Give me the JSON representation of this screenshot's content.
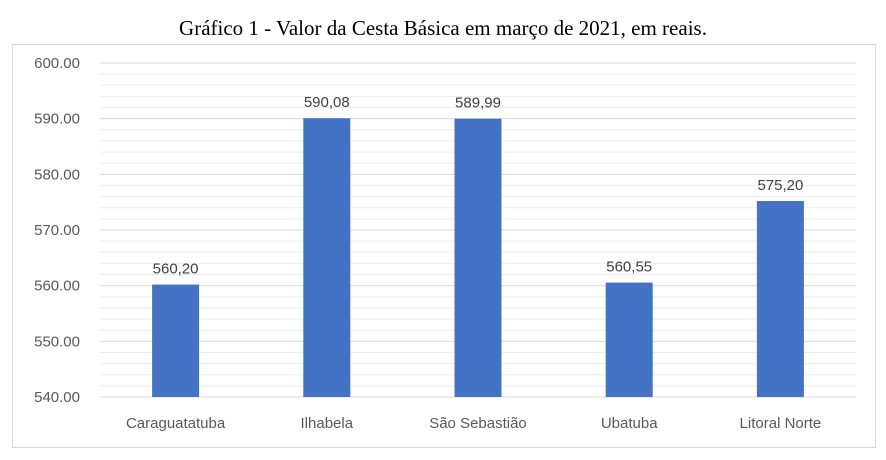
{
  "chart_data": {
    "type": "bar",
    "title": "Gráfico 1 - Valor da Cesta Básica em março de 2021, em reais.",
    "xlabel": "",
    "ylabel": "",
    "categories": [
      "Caraguatatuba",
      "Ilhabela",
      "São Sebastião",
      "Ubatuba",
      "Litoral Norte"
    ],
    "values": [
      560.2,
      590.08,
      589.99,
      560.55,
      575.2
    ],
    "data_labels": [
      "560,20",
      "590,08",
      "589,99",
      "560,55",
      "575,20"
    ],
    "ylim": [
      540,
      600
    ],
    "major_ticks": [
      540,
      550,
      560,
      570,
      580,
      590,
      600
    ],
    "tick_labels": [
      "540.00",
      "550.00",
      "560.00",
      "570.00",
      "580.00",
      "590.00",
      "600.00"
    ],
    "minor_step": 2,
    "grid": true,
    "legend": "none",
    "colors": {
      "bar": "#4472c4",
      "major_grid": "#d9d9d9",
      "minor_grid": "#ededed",
      "text": "#595959"
    }
  }
}
